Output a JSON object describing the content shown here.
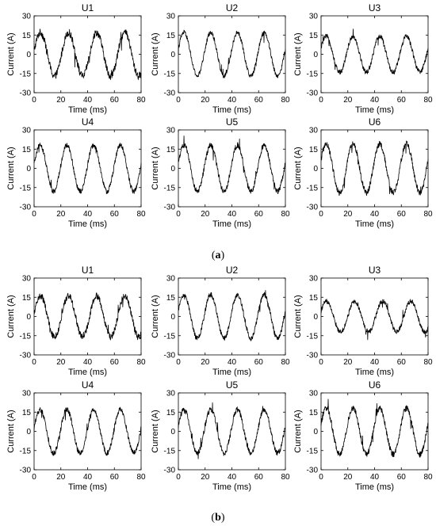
{
  "panels": [
    {
      "label": "a",
      "label_open": "(",
      "label_close": ")"
    },
    {
      "label": "b",
      "label_open": "(",
      "label_close": ")"
    }
  ],
  "chart_data": [
    {
      "type": "line",
      "panel": "a",
      "title": "U1",
      "xlabel": "Time (ms)",
      "ylabel": "Current (A)",
      "xlim": [
        0,
        80
      ],
      "ylim": [
        -30,
        30
      ],
      "xticks": [
        0,
        20,
        40,
        60,
        80
      ],
      "yticks": [
        -30,
        -15,
        0,
        15,
        30
      ],
      "amplitude": 17,
      "period_ms": 21,
      "noise": 3.0,
      "color": "#000000"
    },
    {
      "type": "line",
      "panel": "a",
      "title": "U2",
      "xlabel": "Time (ms)",
      "ylabel": "Current (A)",
      "xlim": [
        0,
        80
      ],
      "ylim": [
        -30,
        30
      ],
      "xticks": [
        0,
        20,
        40,
        60,
        80
      ],
      "yticks": [
        -30,
        -15,
        0,
        15,
        30
      ],
      "amplitude": 17,
      "period_ms": 20,
      "noise": 1.8,
      "color": "#000000"
    },
    {
      "type": "line",
      "panel": "a",
      "title": "U3",
      "xlabel": "Time (ms)",
      "ylabel": "Current (A)",
      "xlim": [
        0,
        80
      ],
      "ylim": [
        -30,
        30
      ],
      "xticks": [
        0,
        20,
        40,
        60,
        80
      ],
      "yticks": [
        -30,
        -15,
        0,
        15,
        30
      ],
      "amplitude": 14,
      "period_ms": 20,
      "noise": 2.0,
      "color": "#000000"
    },
    {
      "type": "line",
      "panel": "a",
      "title": "U4",
      "xlabel": "Time (ms)",
      "ylabel": "Current (A)",
      "xlim": [
        0,
        80
      ],
      "ylim": [
        -30,
        30
      ],
      "xticks": [
        0,
        20,
        40,
        60,
        80
      ],
      "yticks": [
        -30,
        -15,
        0,
        15,
        30
      ],
      "amplitude": 18,
      "period_ms": 20,
      "noise": 2.0,
      "color": "#000000"
    },
    {
      "type": "line",
      "panel": "a",
      "title": "U5",
      "xlabel": "Time (ms)",
      "ylabel": "Current (A)",
      "xlim": [
        0,
        80
      ],
      "ylim": [
        -30,
        30
      ],
      "xticks": [
        0,
        20,
        40,
        60,
        80
      ],
      "yticks": [
        -30,
        -15,
        0,
        15,
        30
      ],
      "amplitude": 18,
      "period_ms": 20,
      "noise": 2.2,
      "color": "#000000"
    },
    {
      "type": "line",
      "panel": "a",
      "title": "U6",
      "xlabel": "Time (ms)",
      "ylabel": "Current (A)",
      "xlim": [
        0,
        80
      ],
      "ylim": [
        -30,
        30
      ],
      "xticks": [
        0,
        20,
        40,
        60,
        80
      ],
      "yticks": [
        -30,
        -15,
        0,
        15,
        30
      ],
      "amplitude": 19,
      "period_ms": 20,
      "noise": 2.4,
      "color": "#000000"
    },
    {
      "type": "line",
      "panel": "b",
      "title": "U1",
      "xlabel": "Time (ms)",
      "ylabel": "Current (A)",
      "xlim": [
        0,
        80
      ],
      "ylim": [
        -30,
        30
      ],
      "xticks": [
        0,
        20,
        40,
        60,
        80
      ],
      "yticks": [
        -30,
        -15,
        0,
        15,
        30
      ],
      "amplitude": 16,
      "period_ms": 21,
      "noise": 2.6,
      "color": "#000000"
    },
    {
      "type": "line",
      "panel": "b",
      "title": "U2",
      "xlabel": "Time (ms)",
      "ylabel": "Current (A)",
      "xlim": [
        0,
        80
      ],
      "ylim": [
        -30,
        30
      ],
      "xticks": [
        0,
        20,
        40,
        60,
        80
      ],
      "yticks": [
        -30,
        -15,
        0,
        15,
        30
      ],
      "amplitude": 17,
      "period_ms": 20,
      "noise": 2.0,
      "color": "#000000"
    },
    {
      "type": "line",
      "panel": "b",
      "title": "U3",
      "xlabel": "Time (ms)",
      "ylabel": "Current (A)",
      "xlim": [
        0,
        80
      ],
      "ylim": [
        -30,
        30
      ],
      "xticks": [
        0,
        20,
        40,
        60,
        80
      ],
      "yticks": [
        -30,
        -15,
        0,
        15,
        30
      ],
      "amplitude": 12,
      "period_ms": 21,
      "noise": 1.8,
      "color": "#000000"
    },
    {
      "type": "line",
      "panel": "b",
      "title": "U4",
      "xlabel": "Time (ms)",
      "ylabel": "Current (A)",
      "xlim": [
        0,
        80
      ],
      "ylim": [
        -30,
        30
      ],
      "xticks": [
        0,
        20,
        40,
        60,
        80
      ],
      "yticks": [
        -30,
        -15,
        0,
        15,
        30
      ],
      "amplitude": 17,
      "period_ms": 20,
      "noise": 2.2,
      "color": "#000000"
    },
    {
      "type": "line",
      "panel": "b",
      "title": "U5",
      "xlabel": "Time (ms)",
      "ylabel": "Current (A)",
      "xlim": [
        0,
        80
      ],
      "ylim": [
        -30,
        30
      ],
      "xticks": [
        0,
        20,
        40,
        60,
        80
      ],
      "yticks": [
        -30,
        -15,
        0,
        15,
        30
      ],
      "amplitude": 17,
      "period_ms": 20,
      "noise": 2.2,
      "color": "#000000"
    },
    {
      "type": "line",
      "panel": "b",
      "title": "U6",
      "xlabel": "Time (ms)",
      "ylabel": "Current (A)",
      "xlim": [
        0,
        80
      ],
      "ylim": [
        -30,
        30
      ],
      "xticks": [
        0,
        20,
        40,
        60,
        80
      ],
      "yticks": [
        -30,
        -15,
        0,
        15,
        30
      ],
      "amplitude": 18,
      "period_ms": 20,
      "noise": 2.4,
      "color": "#000000"
    }
  ]
}
